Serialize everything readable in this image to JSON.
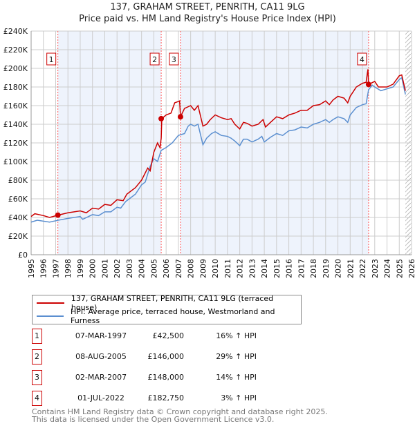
{
  "header": {
    "title": "137, GRAHAM STREET, PENRITH, CA11 9LG",
    "subtitle": "Price paid vs. HM Land Registry's House Price Index (HPI)"
  },
  "chart_data": {
    "type": "line",
    "title": "137, GRAHAM STREET, PENRITH, CA11 9LG",
    "subtitle": "Price paid vs. HM Land Registry's House Price Index (HPI)",
    "xlim": [
      1995,
      2026
    ],
    "ylim": [
      0,
      240000
    ],
    "yticks": [
      {
        "v": 0,
        "label": "£0"
      },
      {
        "v": 20000,
        "label": "£20K"
      },
      {
        "v": 40000,
        "label": "£40K"
      },
      {
        "v": 60000,
        "label": "£60K"
      },
      {
        "v": 80000,
        "label": "£80K"
      },
      {
        "v": 100000,
        "label": "£100K"
      },
      {
        "v": 120000,
        "label": "£120K"
      },
      {
        "v": 140000,
        "label": "£140K"
      },
      {
        "v": 160000,
        "label": "£160K"
      },
      {
        "v": 180000,
        "label": "£180K"
      },
      {
        "v": 200000,
        "label": "£200K"
      },
      {
        "v": 220000,
        "label": "£220K"
      },
      {
        "v": 240000,
        "label": "£240K"
      }
    ],
    "xticks": [
      "1995",
      "1996",
      "1997",
      "1998",
      "1999",
      "2000",
      "2001",
      "2002",
      "2003",
      "2004",
      "2005",
      "2006",
      "2007",
      "2008",
      "2009",
      "2010",
      "2011",
      "2012",
      "2013",
      "2014",
      "2015",
      "2016",
      "2017",
      "2018",
      "2019",
      "2020",
      "2021",
      "2022",
      "2023",
      "2024",
      "2025",
      "2026"
    ],
    "grid": true,
    "legend_placement": "below",
    "series": [
      {
        "name": "137, GRAHAM STREET, PENRITH, CA11 9LG (terraced house)",
        "color": "#cc0000",
        "x": [
          1995,
          1995.3,
          1996,
          1996.5,
          1997.2,
          1998,
          1999,
          1999.5,
          2000,
          2000.5,
          2001,
          2001.5,
          2002,
          2002.5,
          2002.8,
          2003.5,
          2004,
          2004.5,
          2004.7,
          2005,
          2005.3,
          2005.5,
          2005.6,
          2005.65,
          2006,
          2006.4,
          2006.7,
          2007.1,
          2007.17,
          2007.5,
          2008,
          2008.3,
          2008.6,
          2009,
          2009.3,
          2009.6,
          2010,
          2010.5,
          2011,
          2011.3,
          2011.6,
          2012,
          2012.3,
          2012.6,
          2013,
          2013.5,
          2013.9,
          2014.1,
          2014.5,
          2015,
          2015.5,
          2016,
          2016.5,
          2017,
          2017.5,
          2018,
          2018.5,
          2019,
          2019.3,
          2019.6,
          2020,
          2020.5,
          2020.8,
          2021,
          2021.5,
          2022,
          2022.3,
          2022.4,
          2022.45,
          2022.5,
          2023,
          2023.3,
          2024,
          2024.5,
          2025,
          2025.2,
          2025.5
        ],
        "y": [
          41000,
          44000,
          42000,
          40000,
          42500,
          45000,
          47000,
          45000,
          50000,
          49000,
          54000,
          53000,
          59000,
          58000,
          65000,
          72000,
          80000,
          93000,
          90000,
          110000,
          120000,
          115000,
          125000,
          146000,
          150000,
          152000,
          163000,
          165000,
          148000,
          157000,
          160000,
          155000,
          160000,
          138000,
          140000,
          145000,
          150000,
          147000,
          145000,
          146000,
          140000,
          135000,
          142000,
          141000,
          138000,
          140000,
          145000,
          137000,
          142000,
          148000,
          146000,
          150000,
          152000,
          155000,
          155000,
          160000,
          161000,
          165000,
          161000,
          166000,
          170000,
          168000,
          163000,
          170000,
          180000,
          184000,
          185000,
          195000,
          199000,
          182750,
          186000,
          180000,
          180000,
          183000,
          192000,
          193000,
          176000
        ]
      },
      {
        "name": "HPI: Average price, terraced house, Westmorland and Furness",
        "color": "#5b8fd0",
        "x": [
          1995,
          1995.5,
          1996.5,
          1997.2,
          1998,
          1999,
          1999.2,
          2000,
          2000.5,
          2001,
          2001.5,
          2002,
          2002.3,
          2002.7,
          2003,
          2003.5,
          2004,
          2004.3,
          2004.7,
          2005,
          2005.3,
          2005.6,
          2006,
          2006.5,
          2007,
          2007.5,
          2007.8,
          2008,
          2008.3,
          2008.6,
          2009,
          2009.3,
          2009.7,
          2010,
          2010.5,
          2011,
          2011.3,
          2011.6,
          2012,
          2012.3,
          2012.6,
          2013,
          2013.5,
          2013.8,
          2014,
          2014.5,
          2015,
          2015.5,
          2016,
          2016.5,
          2017,
          2017.5,
          2018,
          2018.5,
          2019,
          2019.3,
          2019.6,
          2020,
          2020.5,
          2020.8,
          2021,
          2021.5,
          2022,
          2022.3,
          2022.5,
          2022.8,
          2023,
          2023.5,
          2024,
          2024.5,
          2025,
          2025.2,
          2025.5
        ],
        "y": [
          35000,
          37000,
          35000,
          37000,
          39000,
          41000,
          38000,
          43000,
          42000,
          46000,
          46000,
          51000,
          50000,
          57000,
          60000,
          65000,
          75000,
          78000,
          95000,
          103000,
          100000,
          112000,
          115000,
          120000,
          128000,
          130000,
          138000,
          140000,
          138000,
          140000,
          118000,
          125000,
          130000,
          132000,
          128000,
          127000,
          125000,
          122000,
          117000,
          124000,
          124000,
          121000,
          124000,
          127000,
          121000,
          126000,
          130000,
          128000,
          133000,
          134000,
          137000,
          136000,
          140000,
          142000,
          145000,
          142000,
          145000,
          148000,
          146000,
          142000,
          150000,
          158000,
          161000,
          162000,
          177000,
          182000,
          180000,
          176000,
          178000,
          180000,
          188000,
          190000,
          172000
        ]
      }
    ],
    "sales": [
      {
        "num": "1",
        "x": 1997.18,
        "price": 42500,
        "date": "07-MAR-1997",
        "price_label": "£42,500",
        "hpi": "16% ↑ HPI"
      },
      {
        "num": "2",
        "x": 2005.6,
        "price": 146000,
        "date": "08-AUG-2005",
        "price_label": "£146,000",
        "hpi": "29% ↑ HPI"
      },
      {
        "num": "3",
        "x": 2007.17,
        "price": 148000,
        "date": "02-MAR-2007",
        "price_label": "£148,000",
        "hpi": "14% ↑ HPI"
      },
      {
        "num": "4",
        "x": 2022.5,
        "price": 182750,
        "date": "01-JUL-2022",
        "price_label": "£182,750",
        "hpi": "3% ↑ HPI"
      }
    ],
    "shaded_ranges": [
      [
        1997.18,
        2005.6
      ],
      [
        2007.17,
        2022.5
      ]
    ],
    "forecast_start": 2025.5
  },
  "legend": {
    "items": [
      "137, GRAHAM STREET, PENRITH, CA11 9LG (terraced house)",
      "HPI: Average price, terraced house, Westmorland and Furness"
    ]
  },
  "footer": {
    "line1": "Contains HM Land Registry data © Crown copyright and database right 2025.",
    "line2": "This data is licensed under the Open Government Licence v3.0."
  }
}
